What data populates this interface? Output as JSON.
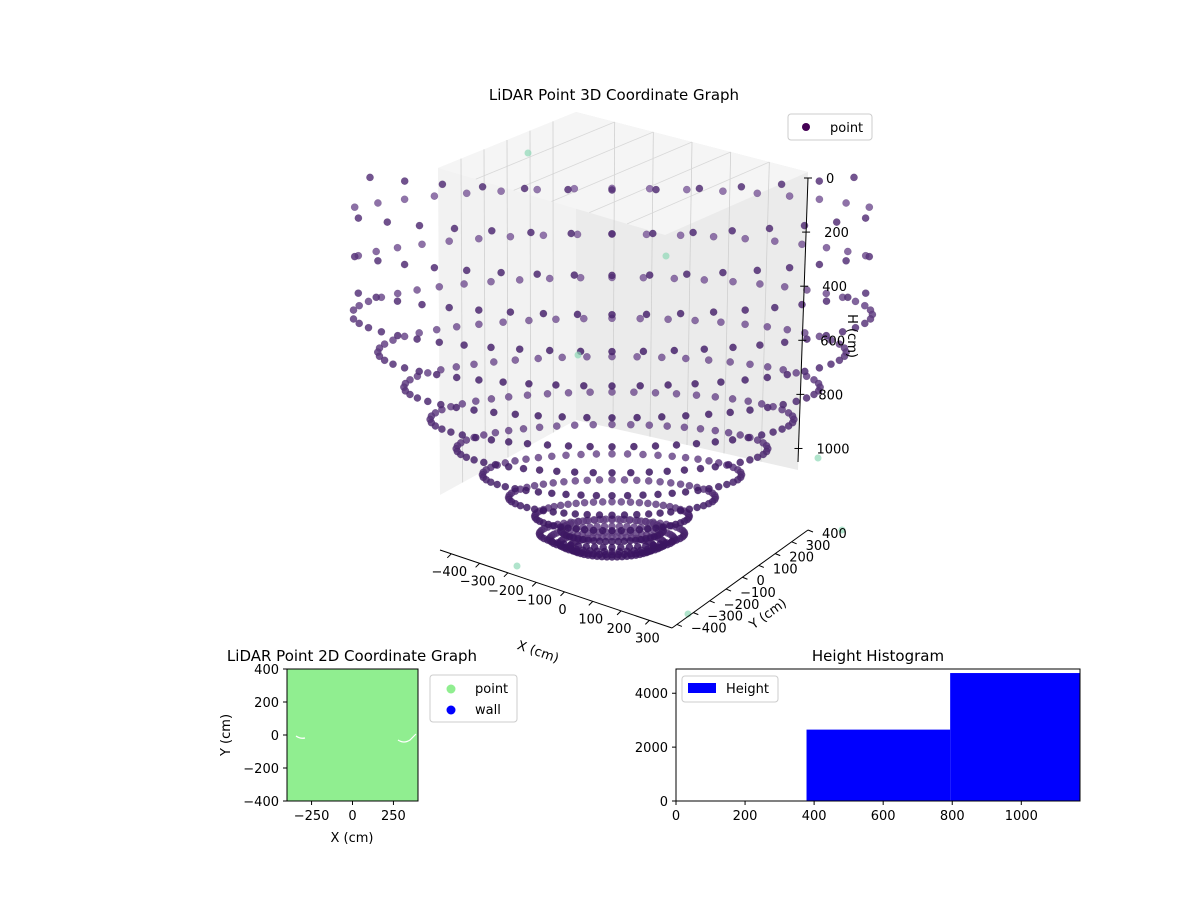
{
  "colors": {
    "point_3d_light": "#8a6aa6",
    "point_3d_dark": "#3b1561",
    "point_3d_legend": "#440154",
    "stray_points": "#8fd9b6",
    "point_2d": "#90ee90",
    "wall_2d": "#0000ff",
    "height_bar": "#0000ff"
  },
  "chart_data": [
    {
      "type": "scatter",
      "title": "LiDAR Point 3D Coordinate Graph",
      "xlabel": "X (cm)",
      "ylabel": "Y (cm)",
      "zlabel": "H (cm)",
      "x_ticks": [
        "−400",
        "−300",
        "−200",
        "−100",
        "0",
        "100",
        "200",
        "300"
      ],
      "y_ticks": [
        "400",
        "300",
        "200",
        "100",
        "0",
        "−100",
        "−200",
        "−300",
        "−400"
      ],
      "z_ticks": [
        "0",
        "200",
        "400",
        "600",
        "800",
        "1000"
      ],
      "xlim": [
        -400,
        400
      ],
      "ylim": [
        -400,
        400
      ],
      "zlim": [
        0,
        1000
      ],
      "z_inverted": true,
      "legend": {
        "position": "top-right",
        "entries": [
          "point"
        ]
      },
      "grid": true,
      "shape": "bowl of radial LiDAR scan lines converging to the center",
      "rings": 13,
      "rays_per_ring": 52
    },
    {
      "type": "scatter",
      "title": "LiDAR Point 2D Coordinate Graph",
      "xlabel": "X (cm)",
      "ylabel": "Y (cm)",
      "x_ticks": [
        "−250",
        "0",
        "250"
      ],
      "x_tick_values": [
        -250,
        0,
        250
      ],
      "y_ticks": [
        "400",
        "200",
        "0",
        "−200",
        "−400"
      ],
      "y_tick_values": [
        400,
        200,
        0,
        -200,
        -400
      ],
      "xlim": [
        -400,
        400
      ],
      "ylim": [
        -400,
        400
      ],
      "legend": {
        "position": "outside-right",
        "entries": [
          "point",
          "wall"
        ]
      },
      "series": [
        {
          "name": "point",
          "fill": "dense, covers the full area"
        },
        {
          "name": "wall",
          "fill": "none visible"
        }
      ]
    },
    {
      "type": "bar",
      "title": "Height Histogram",
      "x_ticks": [
        "0",
        "200",
        "400",
        "600",
        "800",
        "1000"
      ],
      "x_tick_values": [
        0,
        200,
        400,
        600,
        800,
        1000
      ],
      "y_ticks": [
        "0",
        "2000",
        "4000"
      ],
      "y_tick_values": [
        0,
        2000,
        4000
      ],
      "xlim": [
        0,
        1170
      ],
      "ylim": [
        0,
        4900
      ],
      "legend": {
        "position": "top-left",
        "entries": [
          "Height"
        ]
      },
      "bins": [
        {
          "x0": 0,
          "x1": 378,
          "count": 0
        },
        {
          "x0": 378,
          "x1": 794,
          "count": 2650
        },
        {
          "x0": 794,
          "x1": 1170,
          "count": 4750
        }
      ]
    }
  ]
}
